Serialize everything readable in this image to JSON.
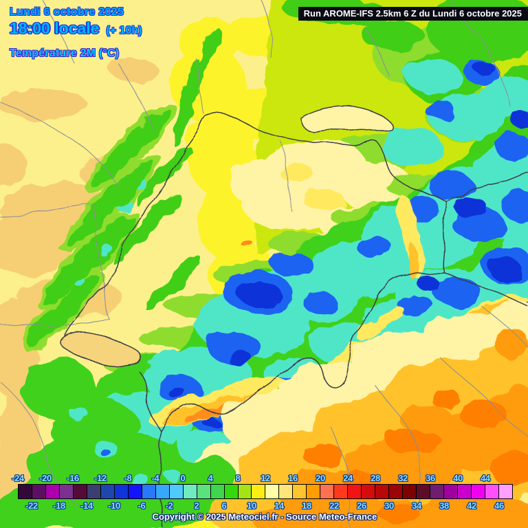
{
  "header": {
    "date_line": "Lundi 6 octobre 2025",
    "time_line": "18:00 locale",
    "time_offset": "(+ 10h)",
    "variable_line": "Température 2M (°C)"
  },
  "run_banner": {
    "text": "Run AROME-IFS 2.5km 6 Z du Lundi 6 octobre 2025"
  },
  "legend": {
    "unit": "°C",
    "ticks_top": [
      "-24",
      "-20",
      "-16",
      "-12",
      "-8",
      "-4",
      "0",
      "4",
      "8",
      "12",
      "16",
      "20",
      "24",
      "28",
      "32",
      "36",
      "40",
      "44"
    ],
    "ticks_bottom": [
      "-22",
      "-18",
      "-14",
      "-10",
      "-6",
      "-2",
      "2",
      "6",
      "10",
      "14",
      "18",
      "22",
      "26",
      "30",
      "34",
      "38",
      "42",
      "46"
    ],
    "colors": [
      "#35083a",
      "#5c0f62",
      "#ab00ab",
      "#7c3090",
      "#560a3a",
      "#3a3f70",
      "#1d47ae",
      "#0f35d8",
      "#1313ff",
      "#2979ff",
      "#37a7fb",
      "#4fc9fe",
      "#70ebc0",
      "#5ce27d",
      "#3fd54f",
      "#35d80e",
      "#a2e414",
      "#fded17",
      "#ffffaa",
      "#ffe678",
      "#ffc52e",
      "#ff9c00",
      "#ff7150",
      "#ff3a1c",
      "#f01414",
      "#d60c0c",
      "#b80808",
      "#9a0404",
      "#7c0202",
      "#5e0d28",
      "#6f1d6f",
      "#a100a1",
      "#cc00cc",
      "#f000f0",
      "#ff50ff",
      "#ffa0ff"
    ],
    "copyright": "Copyright © 2025 Meteociel.fr - Source Meteo-France"
  },
  "map_colors": {
    "plain_yellow": "#fcf08c",
    "cream": "#fff3a6",
    "tan": "#f6cf74",
    "bright_yellow": "#fcf32c",
    "valley_yellow": "#ffe95e",
    "yellow_green": "#cbe70e",
    "light_green": "#8edc2e",
    "green": "#3fce16",
    "cyan": "#4fe6c8",
    "blue": "#1e63f2",
    "dark_blue": "#0a30d8",
    "gold": "#ffc22c",
    "orange": "#ff9c08",
    "deep_orange": "#ff7f00",
    "border_country": "#3c3c44",
    "border_region": "#8f8f96"
  }
}
